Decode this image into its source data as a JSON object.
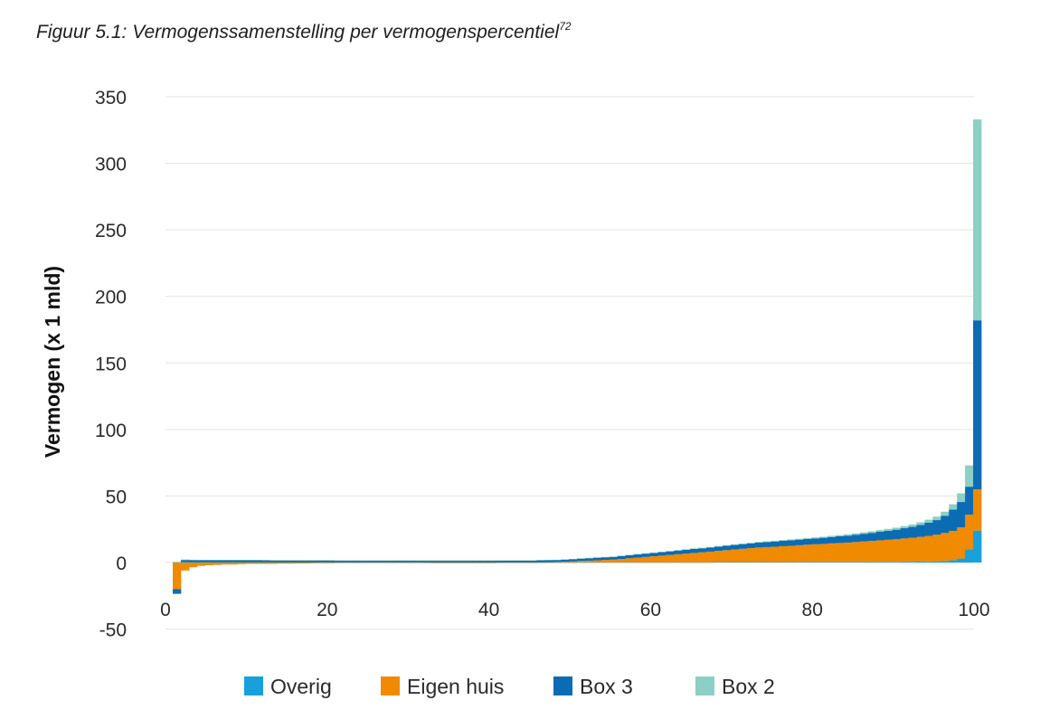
{
  "figure": {
    "title_prefix": "Figuur 5.1: Vermogenssamenstelling per vermogenspercentiel",
    "title_footnote": "72"
  },
  "chart_data": {
    "type": "bar",
    "stacked": true,
    "ylabel": "Vermogen (x 1 mld)",
    "xlabel": "",
    "ylim": [
      -50,
      350
    ],
    "xlim": [
      0,
      100
    ],
    "y_ticks": [
      350,
      300,
      250,
      200,
      150,
      100,
      50,
      0,
      -50
    ],
    "x_ticks": [
      0,
      20,
      40,
      60,
      80,
      100
    ],
    "grid": "horizontal",
    "legend_position": "bottom",
    "colors": {
      "Overig": "#16a1dd",
      "Eigen huis": "#f08a00",
      "Box 3": "#0b6cb3",
      "Box 2": "#8ccfc4"
    },
    "x": [
      1,
      2,
      3,
      4,
      5,
      6,
      7,
      8,
      9,
      10,
      11,
      12,
      13,
      14,
      15,
      16,
      17,
      18,
      19,
      20,
      21,
      22,
      23,
      24,
      25,
      26,
      27,
      28,
      29,
      30,
      31,
      32,
      33,
      34,
      35,
      36,
      37,
      38,
      39,
      40,
      41,
      42,
      43,
      44,
      45,
      46,
      47,
      48,
      49,
      50,
      51,
      52,
      53,
      54,
      55,
      56,
      57,
      58,
      59,
      60,
      61,
      62,
      63,
      64,
      65,
      66,
      67,
      68,
      69,
      70,
      71,
      72,
      73,
      74,
      75,
      76,
      77,
      78,
      79,
      80,
      81,
      82,
      83,
      84,
      85,
      86,
      87,
      88,
      89,
      90,
      91,
      92,
      93,
      94,
      95,
      96,
      97,
      98,
      99,
      100
    ],
    "series": [
      {
        "name": "Overig",
        "values": [
          0.3,
          0.4,
          0.3,
          0.2,
          0.2,
          0.2,
          0.2,
          0.2,
          0.2,
          0.2,
          0.2,
          0.2,
          0.2,
          0.2,
          0.2,
          0.2,
          0.2,
          0.2,
          0.2,
          0.2,
          0.1,
          0.1,
          0.1,
          0.1,
          0.1,
          0.1,
          0.1,
          0.1,
          0.1,
          0.1,
          0.1,
          0.1,
          0.1,
          0.1,
          0.1,
          0.1,
          0.1,
          0.1,
          0.1,
          0.1,
          0.1,
          0.1,
          0.1,
          0.1,
          0.1,
          0.1,
          0.1,
          0.1,
          0.1,
          0.1,
          0.2,
          0.2,
          0.2,
          0.2,
          0.2,
          0.2,
          0.2,
          0.2,
          0.2,
          0.2,
          0.2,
          0.2,
          0.2,
          0.2,
          0.2,
          0.2,
          0.2,
          0.3,
          0.3,
          0.3,
          0.3,
          0.3,
          0.3,
          0.3,
          0.3,
          0.3,
          0.3,
          0.4,
          0.4,
          0.4,
          0.4,
          0.4,
          0.4,
          0.4,
          0.4,
          0.4,
          0.5,
          0.5,
          0.5,
          0.5,
          0.6,
          0.6,
          0.7,
          0.8,
          0.9,
          1.2,
          1.8,
          3.0,
          10.0,
          24.0
        ]
      },
      {
        "name": "Eigen huis",
        "values": [
          -20.0,
          -6.0,
          -3.5,
          -2.5,
          -2.0,
          -1.8,
          -1.5,
          -1.5,
          -1.2,
          -1.0,
          -1.0,
          -1.0,
          -1.0,
          -0.8,
          -0.8,
          -0.7,
          -0.7,
          -0.6,
          -0.5,
          -0.5,
          -0.3,
          -0.3,
          -0.3,
          -0.3,
          -0.3,
          -0.2,
          -0.2,
          -0.2,
          -0.3,
          -0.3,
          -0.3,
          -0.4,
          -0.5,
          -0.5,
          -0.5,
          -0.5,
          -0.5,
          -0.5,
          -0.5,
          -0.5,
          -0.3,
          -0.3,
          -0.2,
          -0.1,
          -0.1,
          0.1,
          0.2,
          0.3,
          0.5,
          0.7,
          1.0,
          1.2,
          1.5,
          1.8,
          2.0,
          2.5,
          3.0,
          3.5,
          4.0,
          4.5,
          5.0,
          5.5,
          6.0,
          6.5,
          7.0,
          7.5,
          8.0,
          8.5,
          9.0,
          9.5,
          10.0,
          10.5,
          11.0,
          11.3,
          11.6,
          12.0,
          12.3,
          12.6,
          13.0,
          13.3,
          13.6,
          14.0,
          14.3,
          14.6,
          15.0,
          15.4,
          15.8,
          16.2,
          16.6,
          17.0,
          17.5,
          18.0,
          18.6,
          19.2,
          20.0,
          21.0,
          22.0,
          23.5,
          26.0,
          31.0
        ]
      },
      {
        "name": "Box 3",
        "values": [
          -3.5,
          1.5,
          1.5,
          1.6,
          1.6,
          1.6,
          1.6,
          1.6,
          1.6,
          1.6,
          1.6,
          1.6,
          1.5,
          1.5,
          1.5,
          1.5,
          1.5,
          1.5,
          1.5,
          1.5,
          1.4,
          1.4,
          1.4,
          1.4,
          1.4,
          1.4,
          1.4,
          1.4,
          1.4,
          1.4,
          1.4,
          1.4,
          1.4,
          1.4,
          1.4,
          1.4,
          1.4,
          1.4,
          1.4,
          1.4,
          1.5,
          1.5,
          1.5,
          1.5,
          1.5,
          1.6,
          1.6,
          1.6,
          1.7,
          1.8,
          1.8,
          1.9,
          2.0,
          2.0,
          2.1,
          2.2,
          2.3,
          2.4,
          2.5,
          2.5,
          2.6,
          2.7,
          2.8,
          2.9,
          3.0,
          3.0,
          3.1,
          3.2,
          3.3,
          3.4,
          3.5,
          3.6,
          3.7,
          3.8,
          3.9,
          4.0,
          4.1,
          4.2,
          4.3,
          4.4,
          4.6,
          4.8,
          5.0,
          5.2,
          5.5,
          5.8,
          6.0,
          6.4,
          6.8,
          7.2,
          7.7,
          8.2,
          9.0,
          10.0,
          11.0,
          13.0,
          16.0,
          19.0,
          21.0,
          127.0
        ]
      },
      {
        "name": "Box 2",
        "values": [
          0.0,
          0.4,
          0.3,
          0.2,
          0.2,
          0.2,
          0.2,
          0.2,
          0.2,
          0.2,
          0.2,
          0.1,
          0.1,
          0.1,
          0.1,
          0.1,
          0.1,
          0.1,
          0.1,
          0.1,
          0.1,
          0.1,
          0.1,
          0.1,
          0.1,
          0.1,
          0.1,
          0.1,
          0.1,
          0.1,
          0.1,
          0.1,
          0.1,
          0.1,
          0.1,
          0.1,
          0.1,
          0.1,
          0.1,
          0.1,
          0.1,
          0.1,
          0.1,
          0.1,
          0.1,
          0.1,
          0.1,
          0.1,
          0.1,
          0.1,
          0.2,
          0.2,
          0.2,
          0.2,
          0.2,
          0.3,
          0.3,
          0.3,
          0.3,
          0.3,
          0.3,
          0.3,
          0.4,
          0.4,
          0.4,
          0.4,
          0.4,
          0.4,
          0.5,
          0.5,
          0.5,
          0.5,
          0.5,
          0.6,
          0.6,
          0.6,
          0.7,
          0.7,
          0.7,
          0.8,
          0.8,
          0.9,
          0.9,
          1.0,
          1.0,
          1.1,
          1.2,
          1.3,
          1.4,
          1.5,
          1.6,
          1.8,
          2.0,
          2.2,
          2.6,
          3.0,
          4.0,
          6.5,
          16.0,
          151.0
        ]
      }
    ]
  }
}
